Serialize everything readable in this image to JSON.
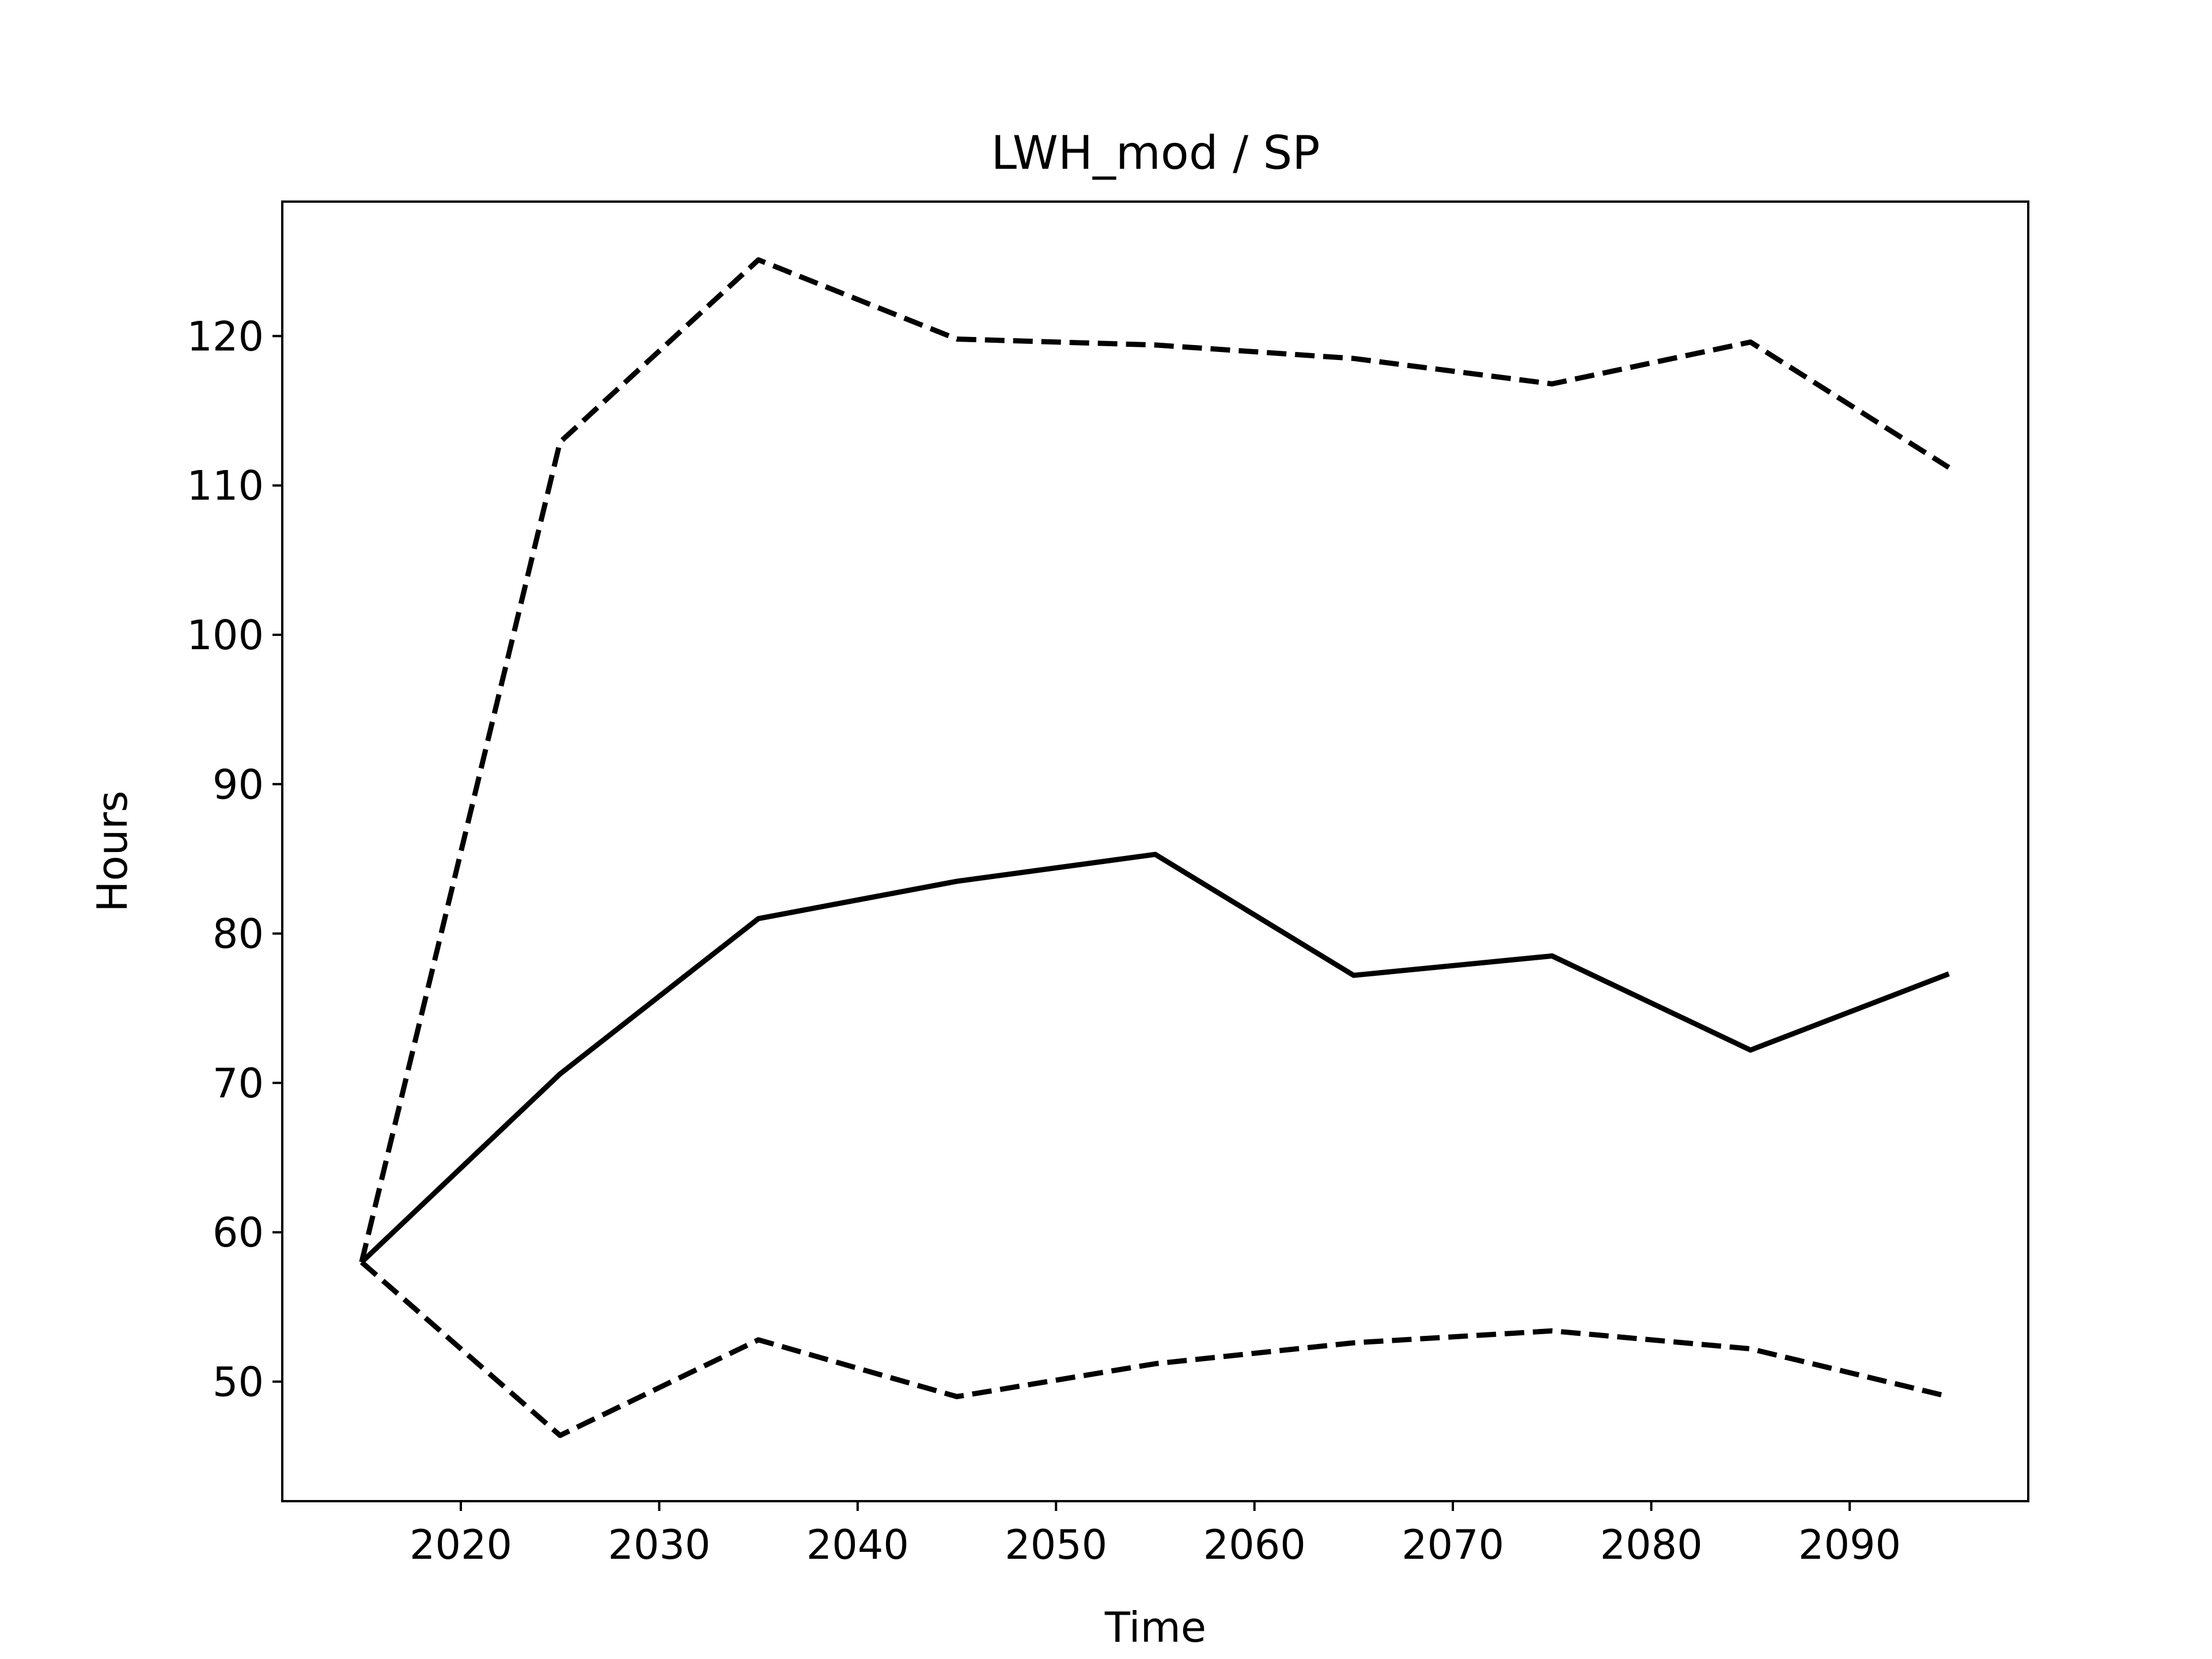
{
  "chart_data": {
    "type": "line",
    "title": "LWH_mod / SP",
    "xlabel": "Time",
    "ylabel": "Hours",
    "xlim": [
      2011,
      2099
    ],
    "ylim": [
      42,
      129
    ],
    "xticks": [
      2020,
      2030,
      2040,
      2050,
      2060,
      2070,
      2080,
      2090
    ],
    "yticks": [
      50,
      60,
      70,
      80,
      90,
      100,
      110,
      120
    ],
    "grid": false,
    "legend": "none",
    "x": [
      2015,
      2025,
      2035,
      2045,
      2055,
      2065,
      2075,
      2085,
      2095
    ],
    "series": [
      {
        "style": "solid",
        "color": "#000000",
        "values": [
          58.0,
          70.6,
          81.0,
          83.5,
          85.3,
          77.2,
          78.5,
          72.2,
          77.3
        ]
      },
      {
        "style": "dashed",
        "color": "#000000",
        "values": [
          58.0,
          112.9,
          125.1,
          119.8,
          119.4,
          118.5,
          116.8,
          119.6,
          111.2
        ]
      },
      {
        "style": "dashed",
        "color": "#000000",
        "values": [
          58.0,
          46.4,
          52.8,
          49.0,
          51.2,
          52.6,
          53.4,
          52.2,
          49.0
        ]
      }
    ]
  }
}
